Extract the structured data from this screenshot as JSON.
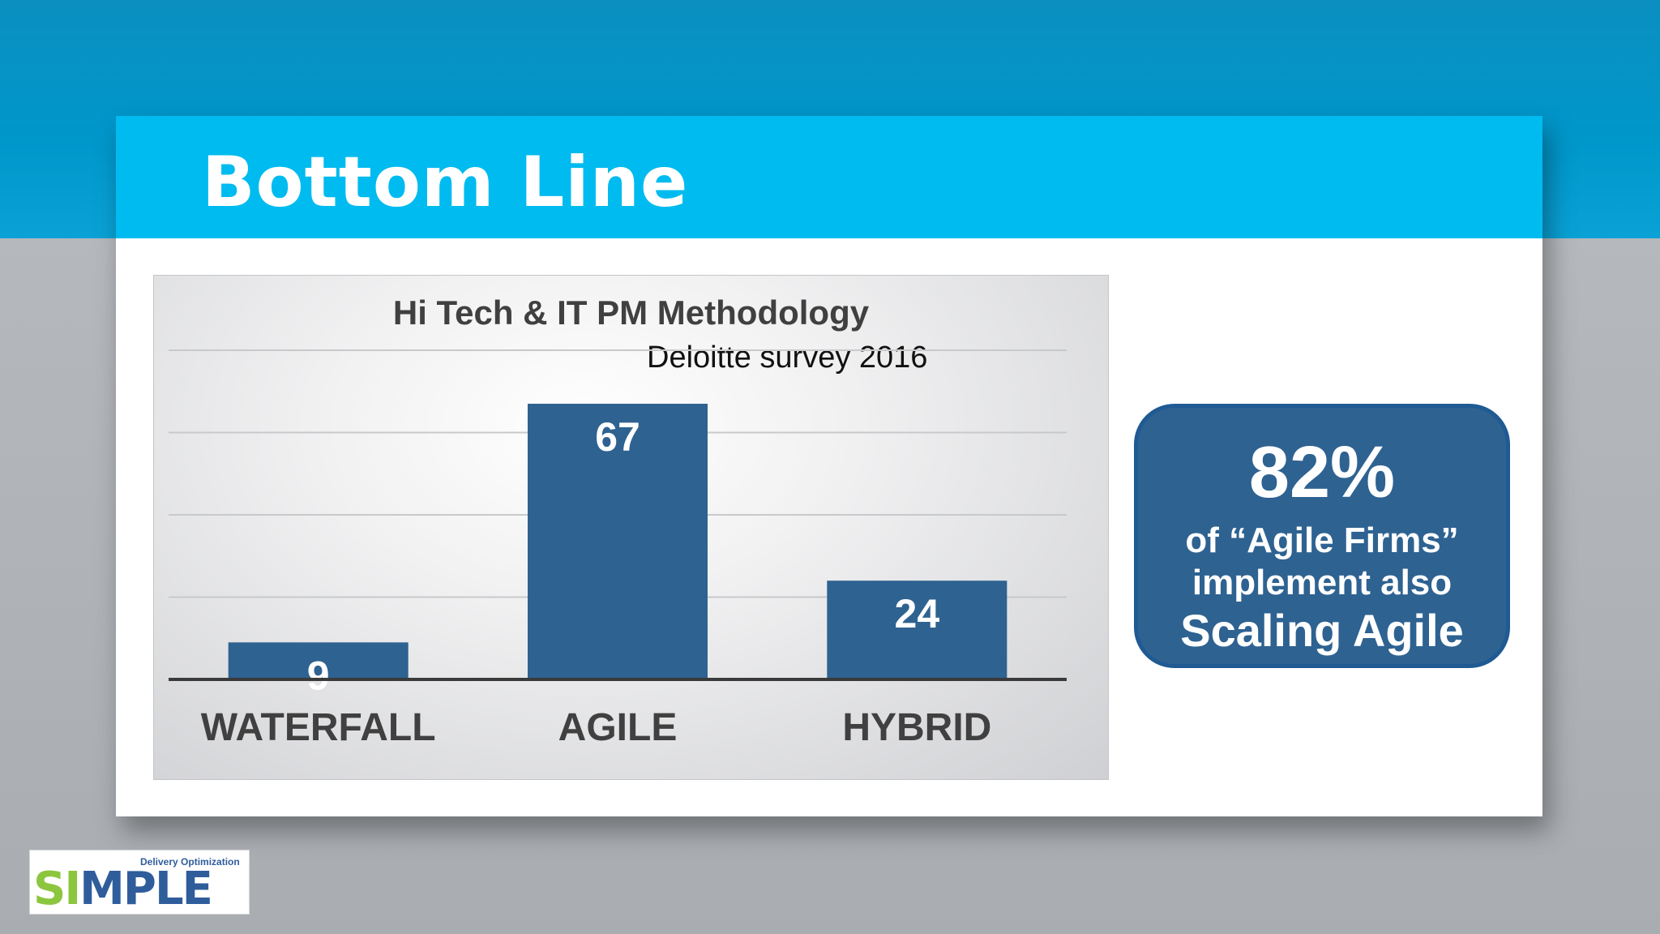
{
  "slide": {
    "title": "Bottom Line"
  },
  "chart_data": {
    "type": "bar",
    "title": "Hi Tech & IT PM Methodology",
    "subtitle": "Deloitte survey 2016",
    "categories": [
      "WATERFALL",
      "AGILE",
      "HYBRID"
    ],
    "values": [
      9,
      67,
      24
    ],
    "data_labels": [
      "9",
      "67",
      "24"
    ],
    "xlabel": "",
    "ylabel": "",
    "ylim": [
      0,
      80
    ],
    "grid": true,
    "legend": "none",
    "colors": {
      "bar": "#2e6291",
      "label": "#ffffff",
      "axis": "#3a3a3a",
      "grid": "#c8c9cb"
    }
  },
  "callout": {
    "value": "82%",
    "line1": "of “Agile Firms”",
    "line2": "implement also",
    "line3": "Scaling Agile"
  },
  "logo": {
    "tagline": "Delivery Optimization",
    "word_prefix": "SI",
    "word_accent": "M",
    "word_suffix": "PLE"
  }
}
